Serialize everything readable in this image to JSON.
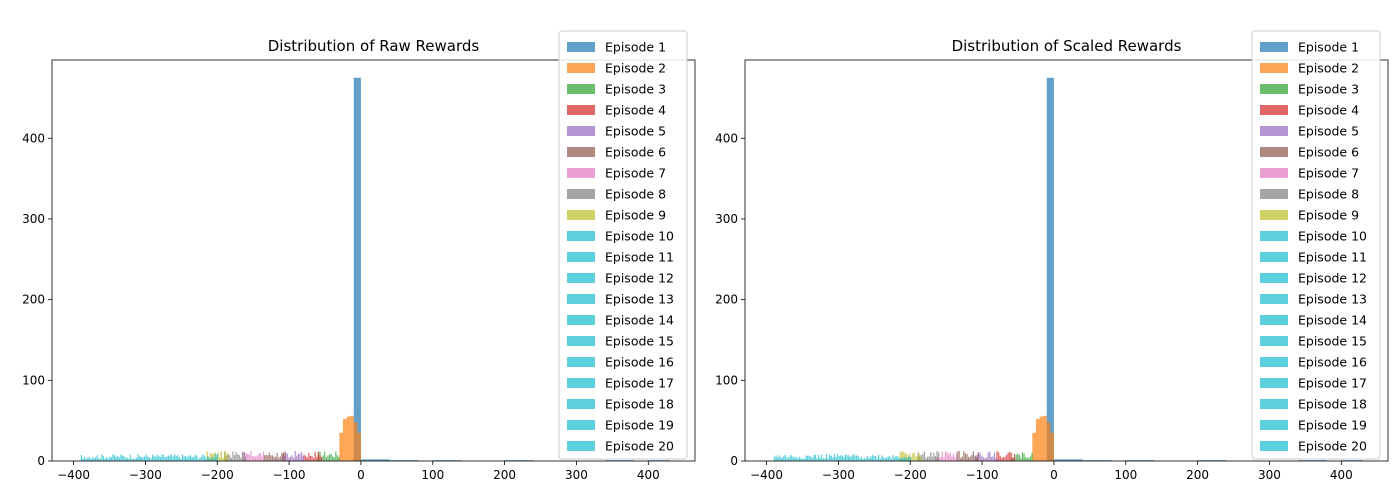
{
  "chart_data": [
    {
      "type": "bar",
      "title": "Distribution of Raw Rewards",
      "xlabel": "",
      "ylabel": "",
      "xlim": [
        -430,
        465
      ],
      "ylim": [
        0,
        497
      ],
      "xticks": [
        -400,
        -300,
        -200,
        -100,
        0,
        100,
        200,
        300,
        400
      ],
      "yticks": [
        0,
        100,
        200,
        300,
        400
      ],
      "grid": false,
      "legend_position": "upper-right",
      "series": [
        {
          "name": "Episode 1",
          "color": "#1f77b4",
          "bins": [
            [
              -10,
              0,
              475
            ],
            [
              0,
              40,
              2
            ],
            [
              40,
              80,
              1
            ],
            [
              100,
              140,
              1
            ],
            [
              200,
              240,
              1
            ],
            [
              340,
              380,
              1
            ],
            [
              400,
              430,
              1
            ]
          ]
        },
        {
          "name": "Episode 2",
          "color": "#ff7f0e",
          "bins": [
            [
              -30,
              -25,
              35
            ],
            [
              -25,
              -20,
              52
            ],
            [
              -20,
              -15,
              55
            ],
            [
              -15,
              -10,
              56
            ],
            [
              -10,
              -5,
              48
            ],
            [
              -5,
              0,
              35
            ]
          ]
        },
        {
          "name": "Episode 3",
          "color": "#2ca02c",
          "range": [
            -60,
            -30
          ],
          "height": 10
        },
        {
          "name": "Episode 4",
          "color": "#d62728",
          "range": [
            -80,
            -55
          ],
          "height": 10
        },
        {
          "name": "Episode 5",
          "color": "#9467bd",
          "range": [
            -110,
            -80
          ],
          "height": 10
        },
        {
          "name": "Episode 6",
          "color": "#8c564b",
          "range": [
            -135,
            -105
          ],
          "height": 10
        },
        {
          "name": "Episode 7",
          "color": "#e377c2",
          "range": [
            -165,
            -135
          ],
          "height": 10
        },
        {
          "name": "Episode 8",
          "color": "#7f7f7f",
          "range": [
            -190,
            -160
          ],
          "height": 10
        },
        {
          "name": "Episode 9",
          "color": "#bcbd22",
          "range": [
            -215,
            -185
          ],
          "height": 10
        },
        {
          "name": "Episode 10",
          "color": "#17becf",
          "range": [
            -390,
            -200
          ],
          "height": 7
        },
        {
          "name": "Episode 11",
          "color": "#17becf"
        },
        {
          "name": "Episode 12",
          "color": "#17becf"
        },
        {
          "name": "Episode 13",
          "color": "#17becf"
        },
        {
          "name": "Episode 14",
          "color": "#17becf"
        },
        {
          "name": "Episode 15",
          "color": "#17becf"
        },
        {
          "name": "Episode 16",
          "color": "#17becf"
        },
        {
          "name": "Episode 17",
          "color": "#17becf"
        },
        {
          "name": "Episode 18",
          "color": "#17becf"
        },
        {
          "name": "Episode 19",
          "color": "#17becf"
        },
        {
          "name": "Episode 20",
          "color": "#17becf"
        }
      ]
    },
    {
      "type": "bar",
      "title": "Distribution of Scaled Rewards",
      "xlabel": "",
      "ylabel": "",
      "xlim": [
        -430,
        465
      ],
      "ylim": [
        0,
        497
      ],
      "xticks": [
        -400,
        -300,
        -200,
        -100,
        0,
        100,
        200,
        300,
        400
      ],
      "yticks": [
        0,
        100,
        200,
        300,
        400
      ],
      "grid": false,
      "legend_position": "upper-right",
      "series": [
        {
          "name": "Episode 1",
          "color": "#1f77b4",
          "bins": [
            [
              -10,
              0,
              475
            ],
            [
              0,
              40,
              2
            ],
            [
              40,
              80,
              1
            ],
            [
              100,
              140,
              1
            ],
            [
              200,
              240,
              1
            ],
            [
              340,
              380,
              1
            ],
            [
              400,
              430,
              1
            ]
          ]
        },
        {
          "name": "Episode 2",
          "color": "#ff7f0e",
          "bins": [
            [
              -30,
              -25,
              35
            ],
            [
              -25,
              -20,
              52
            ],
            [
              -20,
              -15,
              55
            ],
            [
              -15,
              -10,
              56
            ],
            [
              -10,
              -5,
              48
            ],
            [
              -5,
              0,
              35
            ]
          ]
        },
        {
          "name": "Episode 3",
          "color": "#2ca02c",
          "range": [
            -60,
            -30
          ],
          "height": 10
        },
        {
          "name": "Episode 4",
          "color": "#d62728",
          "range": [
            -80,
            -55
          ],
          "height": 10
        },
        {
          "name": "Episode 5",
          "color": "#9467bd",
          "range": [
            -110,
            -80
          ],
          "height": 10
        },
        {
          "name": "Episode 6",
          "color": "#8c564b",
          "range": [
            -135,
            -105
          ],
          "height": 10
        },
        {
          "name": "Episode 7",
          "color": "#e377c2",
          "range": [
            -165,
            -135
          ],
          "height": 10
        },
        {
          "name": "Episode 8",
          "color": "#7f7f7f",
          "range": [
            -190,
            -160
          ],
          "height": 10
        },
        {
          "name": "Episode 9",
          "color": "#bcbd22",
          "range": [
            -215,
            -185
          ],
          "height": 10
        },
        {
          "name": "Episode 10",
          "color": "#17becf",
          "range": [
            -390,
            -200
          ],
          "height": 7
        },
        {
          "name": "Episode 11",
          "color": "#17becf"
        },
        {
          "name": "Episode 12",
          "color": "#17becf"
        },
        {
          "name": "Episode 13",
          "color": "#17becf"
        },
        {
          "name": "Episode 14",
          "color": "#17becf"
        },
        {
          "name": "Episode 15",
          "color": "#17becf"
        },
        {
          "name": "Episode 16",
          "color": "#17becf"
        },
        {
          "name": "Episode 17",
          "color": "#17becf"
        },
        {
          "name": "Episode 18",
          "color": "#17becf"
        },
        {
          "name": "Episode 19",
          "color": "#17becf"
        },
        {
          "name": "Episode 20",
          "color": "#17becf"
        }
      ]
    }
  ]
}
